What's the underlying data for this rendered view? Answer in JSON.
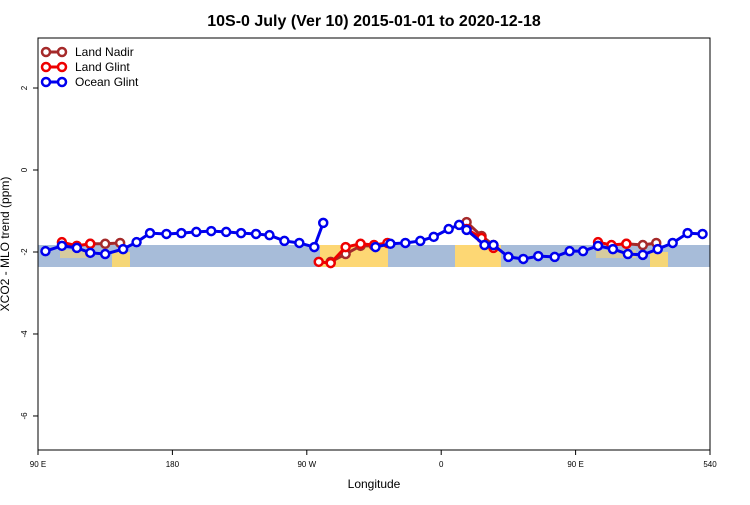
{
  "chart_data": {
    "type": "line",
    "title": "10S-0 July (Ver 10)   2015-01-01 to 2020-12-18",
    "x_label": "Longitude",
    "y_label": "XCO2 - MLO trend (ppm)",
    "xlim": [
      90,
      540
    ],
    "ylim": [
      -6.83,
      3.22
    ],
    "xticks": [
      {
        "value": 90,
        "label": "90 E"
      },
      180,
      {
        "value": 270,
        "label": "90 W"
      },
      {
        "value": 360,
        "label": "0"
      },
      {
        "value": 450,
        "label": "90 E"
      },
      540
    ],
    "yticks": [
      -6,
      -4,
      -2,
      0,
      2
    ],
    "legend": "top-left",
    "series": [
      {
        "name": "Land Nadir",
        "color": "#a52a2a",
        "x": [
          125,
          135,
          145,
          null,
          286,
          296,
          306,
          315,
          null,
          377,
          387,
          395,
          null,
          484,
          495,
          504
        ],
        "values": [
          -1.8,
          -1.8,
          -1.78,
          null,
          -2.24,
          -2.05,
          -1.85,
          -1.85,
          null,
          -1.27,
          -1.61,
          -1.83,
          null,
          -1.8,
          -1.83,
          -1.78
        ]
      },
      {
        "name": "Land Glint",
        "color": "#ee0000",
        "x": [
          106,
          116,
          125,
          null,
          278,
          286,
          296,
          306,
          315,
          324,
          null,
          377,
          387,
          395,
          null,
          465,
          474,
          484
        ],
        "values": [
          -1.76,
          -1.85,
          -1.8,
          null,
          -2.24,
          -2.27,
          -1.88,
          -1.8,
          -1.83,
          -1.78,
          null,
          -1.44,
          -1.66,
          -1.9,
          null,
          -1.76,
          -1.83,
          -1.8
        ]
      },
      {
        "name": "Ocean Glint",
        "color": "#0000ee",
        "x": [
          95,
          106,
          116,
          125,
          135,
          147,
          156,
          165,
          176,
          186,
          196,
          206,
          216,
          226,
          236,
          245,
          255,
          265,
          275,
          281,
          null,
          316,
          326,
          336,
          346,
          355,
          365,
          372,
          377,
          389,
          395,
          405,
          415,
          425,
          436,
          446,
          455,
          465,
          475,
          485,
          495,
          505,
          515,
          525,
          535
        ],
        "values": [
          -1.98,
          -1.85,
          -1.9,
          -2.02,
          -2.05,
          -1.93,
          -1.76,
          -1.54,
          -1.56,
          -1.54,
          -1.51,
          -1.49,
          -1.51,
          -1.54,
          -1.56,
          -1.59,
          -1.73,
          -1.78,
          -1.88,
          -1.29,
          null,
          -1.88,
          -1.8,
          -1.78,
          -1.73,
          -1.63,
          -1.44,
          -1.34,
          -1.46,
          -1.83,
          -1.83,
          -2.12,
          -2.17,
          -2.1,
          -2.12,
          -1.98,
          -1.98,
          -1.85,
          -1.93,
          -2.05,
          -2.07,
          -1.93,
          -1.78,
          -1.54,
          -1.56
        ]
      }
    ]
  }
}
